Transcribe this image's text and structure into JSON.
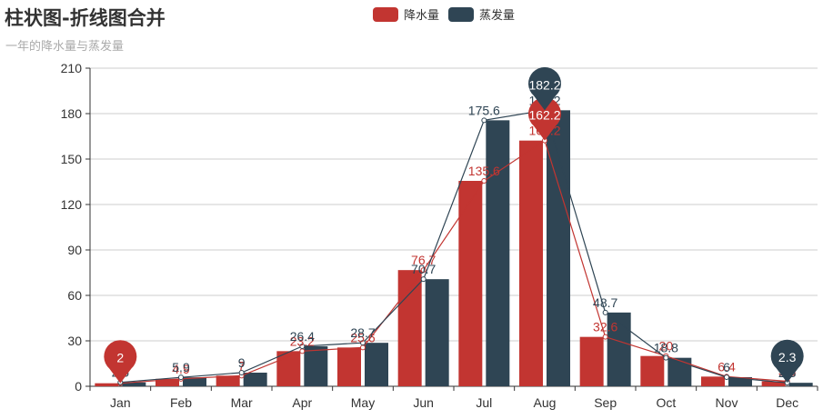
{
  "header": {
    "title": "柱状图-折线图合并",
    "subtitle": "一年的降水量与蒸发量"
  },
  "legend": [
    {
      "name": "降水量",
      "color": "#c23531"
    },
    {
      "name": "蒸发量",
      "color": "#2f4554"
    }
  ],
  "chart_data": {
    "type": "bar",
    "title": "柱状图-折线图合并",
    "subtitle": "一年的降水量与蒸发量",
    "categories": [
      "Jan",
      "Feb",
      "Mar",
      "Apr",
      "May",
      "Jun",
      "Jul",
      "Aug",
      "Sep",
      "Oct",
      "Nov",
      "Dec"
    ],
    "ylim": [
      0,
      210
    ],
    "yticks": [
      0,
      30,
      60,
      90,
      120,
      150,
      180,
      210
    ],
    "grid": "horizontal",
    "legend_position": "top-center",
    "series": [
      {
        "name": "降水量",
        "type": "bar",
        "color": "#c23531",
        "values": [
          2.0,
          4.9,
          7.0,
          23.2,
          25.6,
          76.7,
          135.6,
          162.2,
          32.6,
          20.0,
          6.4,
          3.3
        ],
        "labels": [
          "2",
          "4.9",
          "7",
          "23.2",
          "25.6",
          "76.7",
          "135.6",
          "162.2",
          "32.6",
          "20",
          "6.4",
          "3.3"
        ]
      },
      {
        "name": "蒸发量",
        "type": "bar",
        "color": "#2f4554",
        "values": [
          2.6,
          5.9,
          9.0,
          26.4,
          28.7,
          70.7,
          175.6,
          182.2,
          48.7,
          18.8,
          6.0,
          2.3
        ],
        "labels": [
          "2.6",
          "5.9",
          "9",
          "26.4",
          "28.7",
          "70.7",
          "175.6",
          "182.2",
          "48.7",
          "18.8",
          "6",
          "2.3"
        ]
      },
      {
        "name": "降水量",
        "type": "line",
        "color": "#c23531",
        "values": [
          2.0,
          4.9,
          7.0,
          23.2,
          25.6,
          76.7,
          135.6,
          162.2,
          32.6,
          20.0,
          6.4,
          3.3
        ]
      },
      {
        "name": "蒸发量",
        "type": "line",
        "color": "#2f4554",
        "values": [
          2.6,
          5.9,
          9.0,
          26.4,
          28.7,
          70.7,
          175.6,
          182.2,
          48.7,
          18.8,
          6.0,
          2.3
        ]
      }
    ],
    "mark_points": [
      {
        "series": "降水量",
        "kind": "min",
        "category": "Jan",
        "value": 2,
        "label": "2",
        "color": "#c23531"
      },
      {
        "series": "降水量",
        "kind": "max",
        "category": "Aug",
        "value": 162.2,
        "label": "162.2",
        "color": "#c23531"
      },
      {
        "series": "蒸发量",
        "kind": "max",
        "category": "Aug",
        "value": 182.2,
        "label": "182.2",
        "color": "#2f4554"
      },
      {
        "series": "蒸发量",
        "kind": "min",
        "category": "Dec",
        "value": 2.3,
        "label": "2.3",
        "color": "#2f4554"
      }
    ]
  }
}
